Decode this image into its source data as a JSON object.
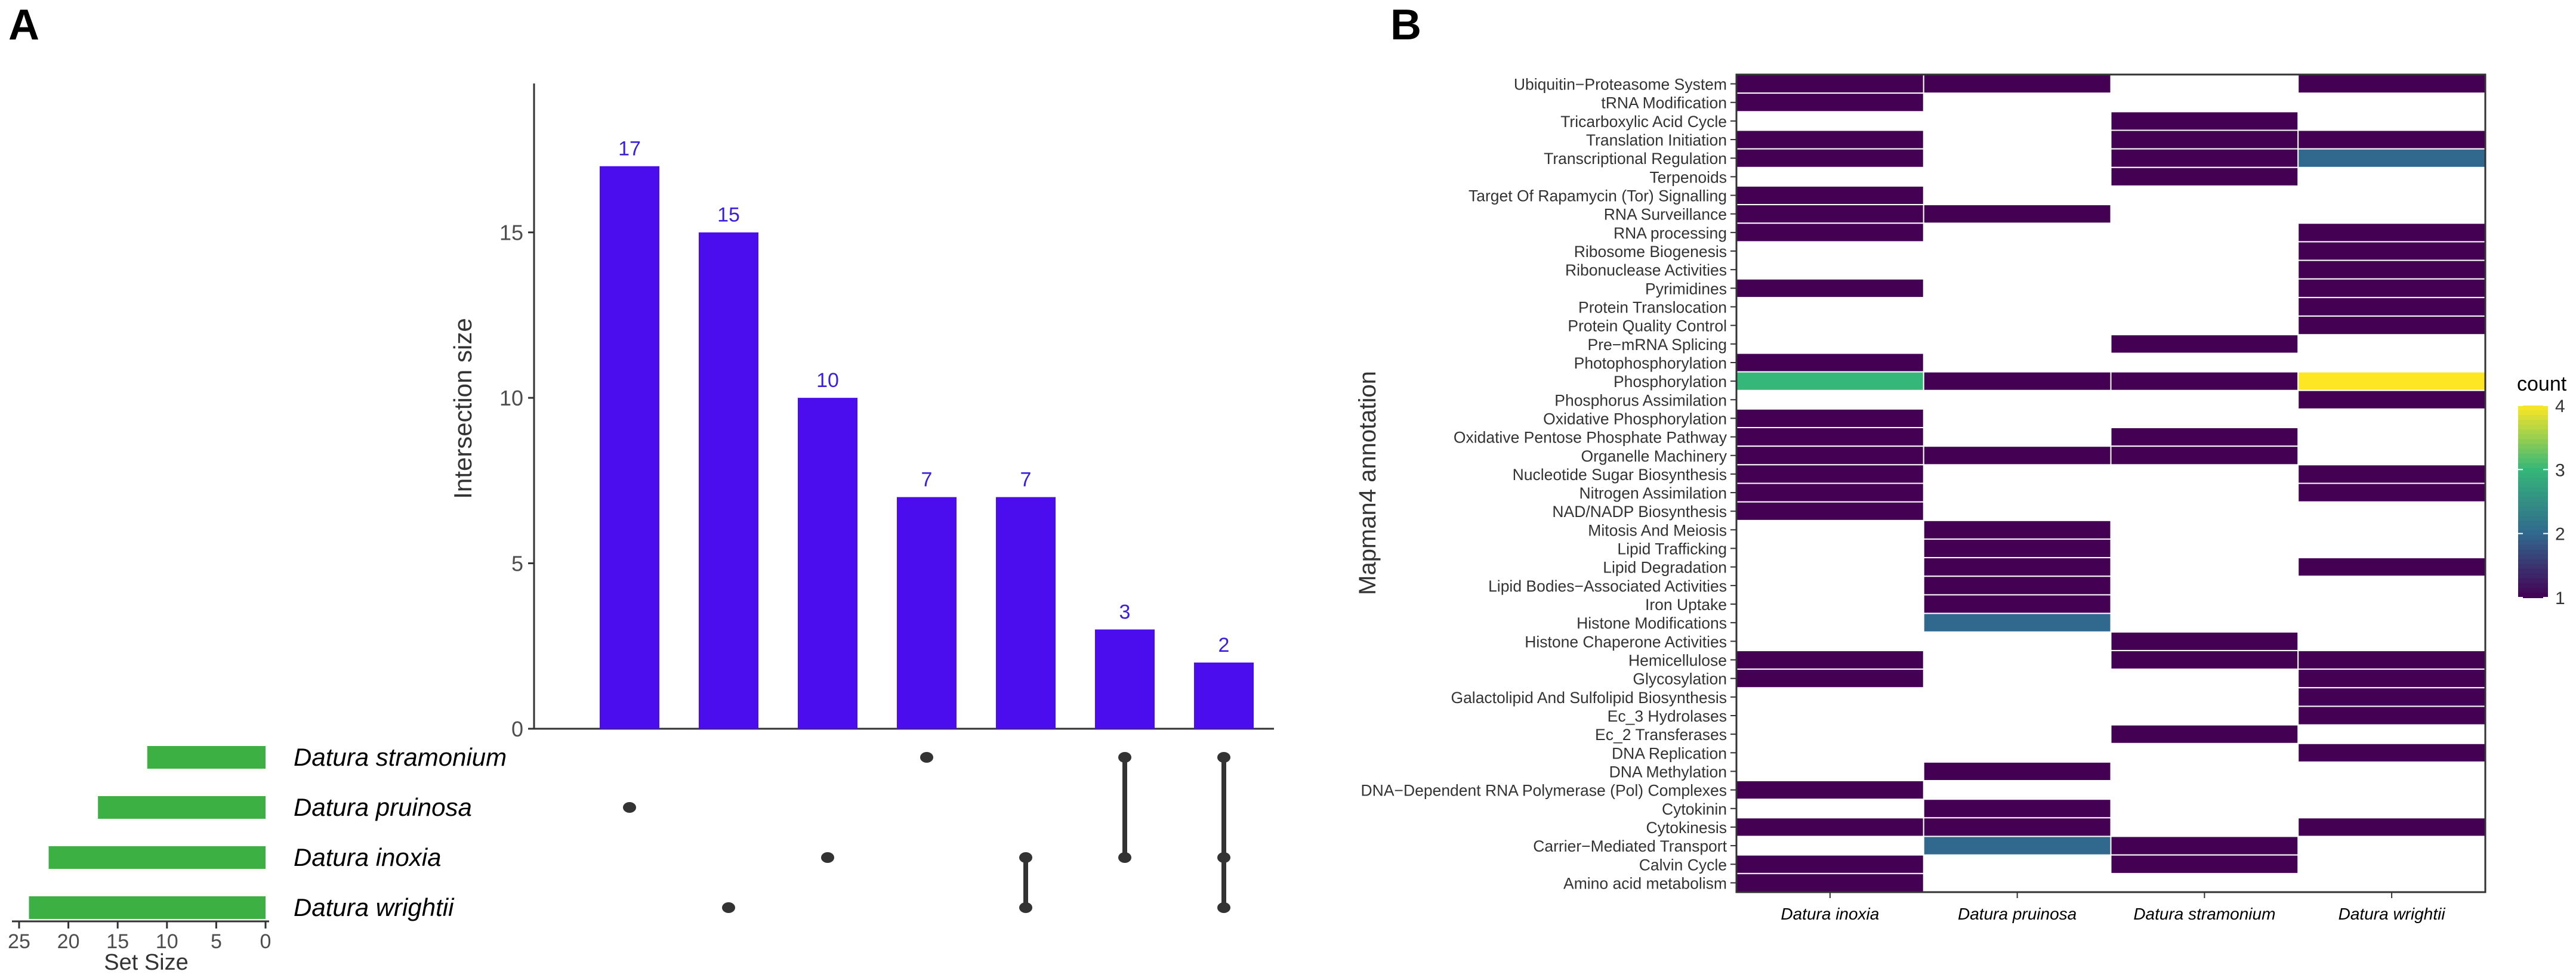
{
  "panel_labels": {
    "a": "A",
    "b": "B"
  },
  "colors": {
    "bar": "#4B0CEE",
    "bar_label": "#3A1FE0",
    "set_bar": "#3CB043",
    "dot": "#333333",
    "cell_line": "#ffffff"
  },
  "chart_data": [
    {
      "type": "bar",
      "subtype": "upset",
      "ylabel": "Intersection size",
      "ylim": [
        0,
        19.5
      ],
      "yticks": [
        "0",
        "5",
        "10",
        "15"
      ],
      "values": [
        17,
        15,
        10,
        7,
        7,
        3,
        2
      ],
      "value_labels": [
        "17",
        "15",
        "10",
        "7",
        "7",
        "3",
        "2"
      ],
      "sets": [
        "Datura stramonium",
        "Datura pruinosa",
        "Datura inoxia",
        "Datura wrightii"
      ],
      "set_sizes": [
        12,
        17,
        22,
        24
      ],
      "set_size_label": "Set Size",
      "set_size_ticks": [
        "25",
        "20",
        "15",
        "10",
        "5",
        "0"
      ],
      "set_size_lim": [
        0,
        25
      ],
      "intersections": [
        [
          1
        ],
        [
          3
        ],
        [
          2
        ],
        [
          0
        ],
        [
          2,
          3
        ],
        [
          0,
          2
        ],
        [
          0,
          2,
          3
        ]
      ]
    },
    {
      "type": "heatmap",
      "ylabel": "Mapman4 annotation",
      "columns": [
        "Datura inoxia",
        "Datura pruinosa",
        "Datura stramonium",
        "Datura wrightii"
      ],
      "rows": [
        "Ubiquitin−Proteasome System",
        "tRNA Modification",
        "Tricarboxylic Acid Cycle",
        "Translation Initiation",
        "Transcriptional Regulation",
        "Terpenoids",
        "Target Of Rapamycin (Tor) Signalling",
        "RNA Surveillance",
        "RNA processing",
        "Ribosome Biogenesis",
        "Ribonuclease Activities",
        "Pyrimidines",
        "Protein Translocation",
        "Protein Quality Control",
        "Pre−mRNA Splicing",
        "Photophosphorylation",
        "Phosphorylation",
        "Phosphorus Assimilation",
        "Oxidative Phosphorylation",
        "Oxidative Pentose Phosphate Pathway",
        "Organelle Machinery",
        "Nucleotide Sugar Biosynthesis",
        "Nitrogen Assimilation",
        "NAD/NADP Biosynthesis",
        "Mitosis And Meiosis",
        "Lipid Trafficking",
        "Lipid Degradation",
        "Lipid Bodies−Associated Activities",
        "Iron Uptake",
        "Histone Modifications",
        "Histone Chaperone Activities",
        "Hemicellulose",
        "Glycosylation",
        "Galactolipid And Sulfolipid Biosynthesis",
        "Ec_3 Hydrolases",
        "Ec_2 Transferases",
        "DNA Replication",
        "DNA Methylation",
        "DNA−Dependent RNA Polymerase (Pol) Complexes",
        "Cytokinin",
        "Cytokinesis",
        "Carrier−Mediated Transport",
        "Calvin Cycle",
        "Amino acid metabolism"
      ],
      "values": [
        [
          1,
          1,
          0,
          1
        ],
        [
          1,
          0,
          0,
          0
        ],
        [
          0,
          0,
          1,
          0
        ],
        [
          1,
          0,
          1,
          1
        ],
        [
          1,
          0,
          1,
          2
        ],
        [
          0,
          0,
          1,
          0
        ],
        [
          1,
          0,
          0,
          0
        ],
        [
          1,
          1,
          0,
          0
        ],
        [
          1,
          0,
          0,
          1
        ],
        [
          0,
          0,
          0,
          1
        ],
        [
          0,
          0,
          0,
          1
        ],
        [
          1,
          0,
          0,
          1
        ],
        [
          0,
          0,
          0,
          1
        ],
        [
          0,
          0,
          0,
          1
        ],
        [
          0,
          0,
          1,
          0
        ],
        [
          1,
          0,
          0,
          0
        ],
        [
          3,
          1,
          1,
          4
        ],
        [
          0,
          0,
          0,
          1
        ],
        [
          1,
          0,
          0,
          0
        ],
        [
          1,
          0,
          1,
          0
        ],
        [
          1,
          1,
          1,
          0
        ],
        [
          1,
          0,
          0,
          1
        ],
        [
          1,
          0,
          0,
          1
        ],
        [
          1,
          0,
          0,
          0
        ],
        [
          0,
          1,
          0,
          0
        ],
        [
          0,
          1,
          0,
          0
        ],
        [
          0,
          1,
          0,
          1
        ],
        [
          0,
          1,
          0,
          0
        ],
        [
          0,
          1,
          0,
          0
        ],
        [
          0,
          2,
          0,
          0
        ],
        [
          0,
          0,
          1,
          0
        ],
        [
          1,
          0,
          1,
          1
        ],
        [
          1,
          0,
          0,
          1
        ],
        [
          0,
          0,
          0,
          1
        ],
        [
          0,
          0,
          0,
          1
        ],
        [
          0,
          0,
          1,
          0
        ],
        [
          0,
          0,
          0,
          1
        ],
        [
          0,
          1,
          0,
          0
        ],
        [
          1,
          0,
          0,
          0
        ],
        [
          0,
          1,
          0,
          0
        ],
        [
          1,
          1,
          0,
          1
        ],
        [
          0,
          2,
          1,
          0
        ],
        [
          1,
          0,
          1,
          0
        ],
        [
          1,
          0,
          0,
          0
        ]
      ],
      "legend_title": "count",
      "legend_ticks": [
        "1",
        "2",
        "3",
        "4"
      ],
      "colorscale": [
        "#440154",
        "#31688E",
        "#35B779",
        "#FDE725"
      ],
      "value_range": [
        1,
        4
      ]
    }
  ]
}
